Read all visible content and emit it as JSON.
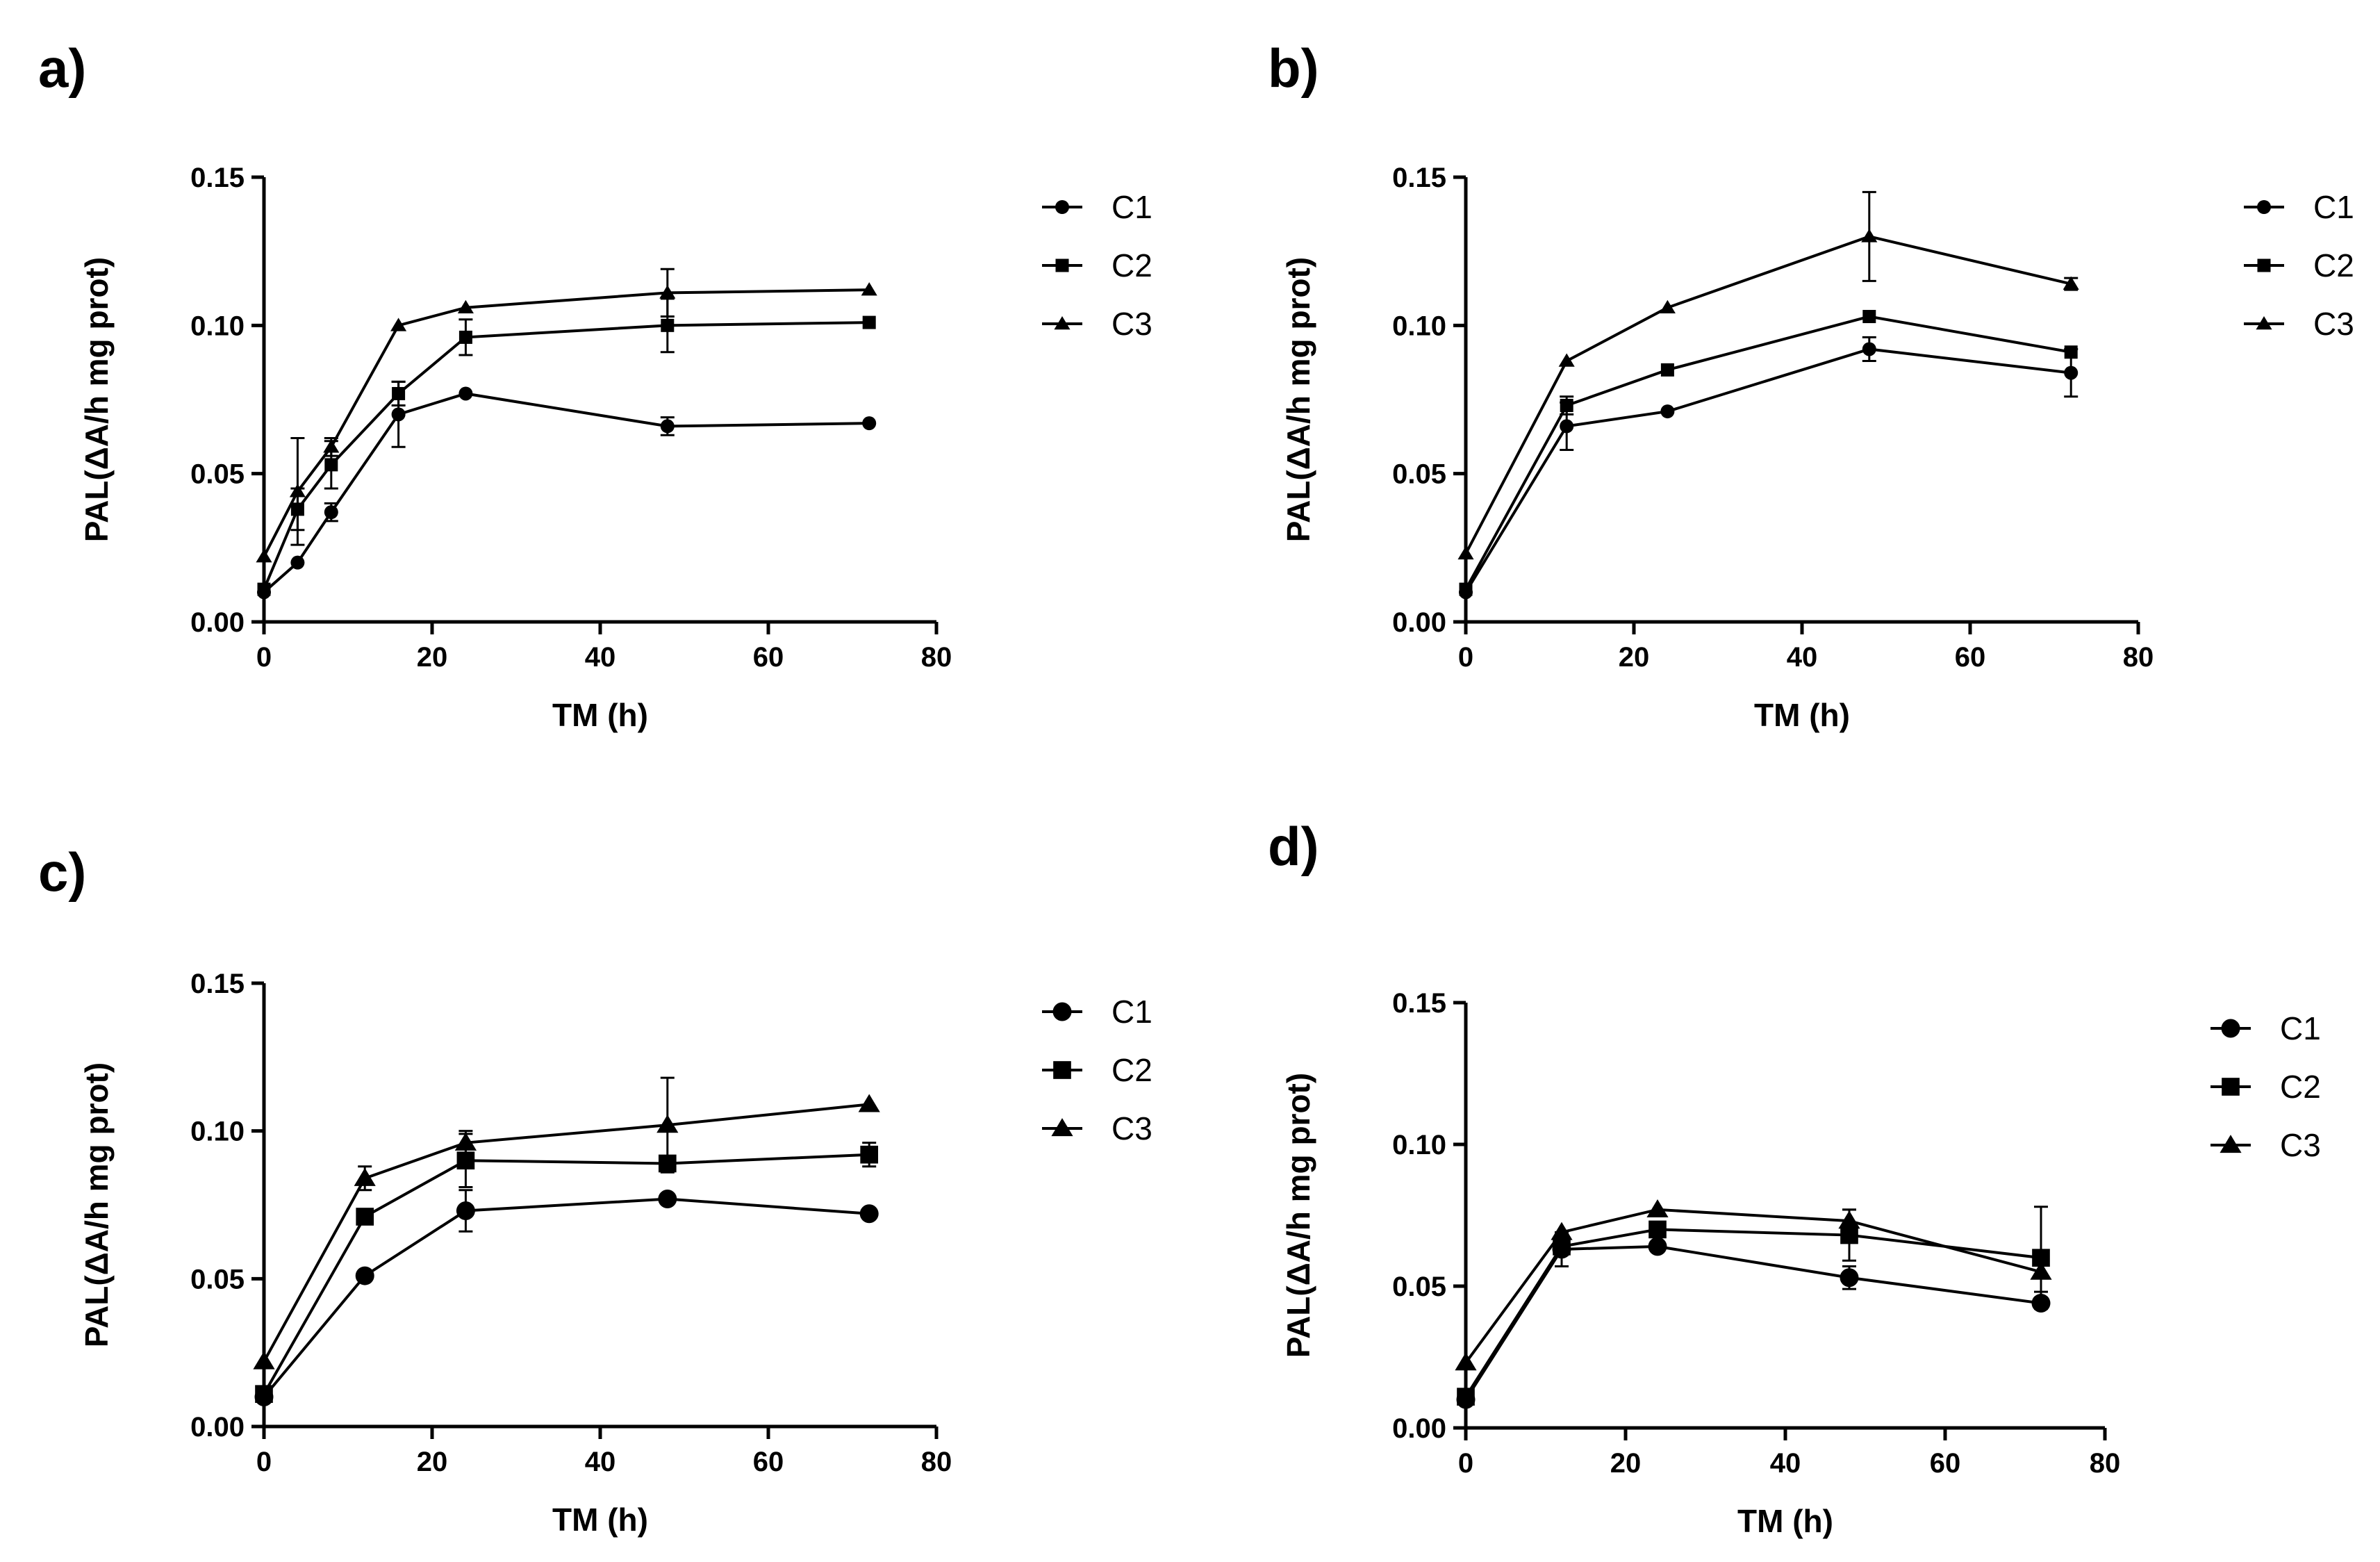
{
  "chart_data": [
    {
      "type": "line",
      "panel_label": "a)",
      "xlabel": "TM (h)",
      "ylabel": "PAL(ΔA/h mg prot)",
      "xlim": [
        0,
        80
      ],
      "ylim": [
        0,
        0.15
      ],
      "x_ticks": [
        "0",
        "20",
        "40",
        "60",
        "80"
      ],
      "y_ticks": [
        "0.00",
        "0.05",
        "0.10",
        "0.15"
      ],
      "legend_position": "right",
      "series": [
        {
          "name": "C1",
          "marker": "circle",
          "x": [
            0,
            4,
            8,
            16,
            24,
            48,
            72
          ],
          "y": [
            0.01,
            0.02,
            0.037,
            0.07,
            0.077,
            0.066,
            0.067
          ],
          "err": [
            0.001,
            0.001,
            0.003,
            0.011,
            0.001,
            0.003,
            0.001
          ]
        },
        {
          "name": "C2",
          "marker": "square",
          "x": [
            0,
            4,
            8,
            16,
            24,
            48,
            72
          ],
          "y": [
            0.011,
            0.038,
            0.053,
            0.077,
            0.096,
            0.1,
            0.101
          ],
          "err": [
            0.001,
            0.007,
            0.008,
            0.004,
            0.006,
            0.009,
            0.001
          ]
        },
        {
          "name": "C3",
          "marker": "triangle",
          "x": [
            0,
            4,
            8,
            16,
            24,
            48,
            72
          ],
          "y": [
            0.022,
            0.044,
            0.059,
            0.1,
            0.106,
            0.111,
            0.112
          ],
          "err": [
            0.001,
            0.018,
            0.003,
            0.001,
            0.001,
            0.008,
            0.001
          ]
        }
      ]
    },
    {
      "type": "line",
      "panel_label": "b)",
      "xlabel": "TM (h)",
      "ylabel": "PAL(ΔA/h mg prot)",
      "xlim": [
        0,
        80
      ],
      "ylim": [
        0,
        0.15
      ],
      "x_ticks": [
        "0",
        "20",
        "40",
        "60",
        "80"
      ],
      "y_ticks": [
        "0.00",
        "0.05",
        "0.10",
        "0.15"
      ],
      "legend_position": "right",
      "series": [
        {
          "name": "C1",
          "marker": "circle",
          "x": [
            0,
            12,
            24,
            48,
            72
          ],
          "y": [
            0.01,
            0.066,
            0.071,
            0.092,
            0.084
          ],
          "err": [
            0.001,
            0.008,
            0.001,
            0.004,
            0.008
          ]
        },
        {
          "name": "C2",
          "marker": "square",
          "x": [
            0,
            12,
            24,
            48,
            72
          ],
          "y": [
            0.011,
            0.073,
            0.085,
            0.103,
            0.091
          ],
          "err": [
            0.001,
            0.003,
            0.001,
            0.001,
            0.001
          ]
        },
        {
          "name": "C3",
          "marker": "triangle",
          "x": [
            0,
            12,
            24,
            48,
            72
          ],
          "y": [
            0.023,
            0.088,
            0.106,
            0.13,
            0.114
          ],
          "err": [
            0.001,
            0.001,
            0.001,
            0.015,
            0.002
          ]
        }
      ]
    },
    {
      "type": "line",
      "panel_label": "c)",
      "xlabel": "TM (h)",
      "ylabel": "PAL(ΔA/h mg prot)",
      "xlim": [
        0,
        80
      ],
      "ylim": [
        0,
        0.15
      ],
      "x_ticks": [
        "0",
        "20",
        "40",
        "60",
        "80"
      ],
      "y_ticks": [
        "0.00",
        "0.05",
        "0.10",
        "0.15"
      ],
      "legend_position": "right",
      "series": [
        {
          "name": "C1",
          "marker": "circle",
          "x": [
            0,
            12,
            24,
            48,
            72
          ],
          "y": [
            0.01,
            0.051,
            0.073,
            0.077,
            0.072
          ],
          "err": [
            0.001,
            0.001,
            0.007,
            0.001,
            0.001
          ]
        },
        {
          "name": "C2",
          "marker": "square",
          "x": [
            0,
            12,
            24,
            48,
            72
          ],
          "y": [
            0.011,
            0.071,
            0.09,
            0.089,
            0.092
          ],
          "err": [
            0.001,
            0.002,
            0.009,
            0.002,
            0.004
          ]
        },
        {
          "name": "C3",
          "marker": "triangle",
          "x": [
            0,
            12,
            24,
            48,
            72
          ],
          "y": [
            0.022,
            0.084,
            0.096,
            0.102,
            0.109
          ],
          "err": [
            0.001,
            0.004,
            0.004,
            0.016,
            0.001
          ]
        }
      ]
    },
    {
      "type": "line",
      "panel_label": "d)",
      "xlabel": "TM (h)",
      "ylabel": "PAL(ΔA/h mg prot)",
      "xlim": [
        0,
        80
      ],
      "ylim": [
        0,
        0.15
      ],
      "x_ticks": [
        "0",
        "20",
        "40",
        "60",
        "80"
      ],
      "y_ticks": [
        "0.00",
        "0.05",
        "0.10",
        "0.15"
      ],
      "legend_position": "right",
      "series": [
        {
          "name": "C1",
          "marker": "circle",
          "x": [
            0,
            12,
            24,
            48,
            72
          ],
          "y": [
            0.01,
            0.063,
            0.064,
            0.053,
            0.044
          ],
          "err": [
            0.001,
            0.006,
            0.001,
            0.004,
            0.001
          ]
        },
        {
          "name": "C2",
          "marker": "square",
          "x": [
            0,
            12,
            24,
            48,
            72
          ],
          "y": [
            0.011,
            0.064,
            0.07,
            0.068,
            0.06
          ],
          "err": [
            0.001,
            0.003,
            0.001,
            0.009,
            0.018
          ]
        },
        {
          "name": "C3",
          "marker": "triangle",
          "x": [
            0,
            12,
            24,
            48,
            72
          ],
          "y": [
            0.023,
            0.069,
            0.077,
            0.073,
            0.055
          ],
          "err": [
            0.001,
            0.001,
            0.001,
            0.004,
            0.007
          ]
        }
      ]
    }
  ]
}
